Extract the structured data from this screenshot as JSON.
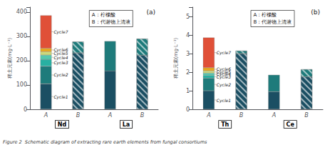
{
  "chart_data": [
    {
      "type": "bar",
      "stacked": true,
      "grid": false,
      "title": "(a)",
      "ylabel": "稀土元素(mg·L⁻¹)",
      "ylim": [
        0,
        420
      ],
      "yticks": [
        0,
        100,
        200,
        300,
        400
      ],
      "categories": [
        "A",
        "B",
        "A",
        "B"
      ],
      "groups": [
        "Nd",
        "La"
      ],
      "annotations": [
        "A：柠檬酸",
        "B：代谢物上清液"
      ],
      "series": [
        {
          "name": "Cycle1",
          "color": "#1b4f63",
          "values": [
            105,
            232,
            158,
            222
          ]
        },
        {
          "name": "Cycle2",
          "color": "#1e7b7b",
          "values": [
            72,
            46,
            122,
            68
          ]
        },
        {
          "name": "Cycle3",
          "color": "#28b0a2",
          "values": [
            28,
            null,
            null,
            null
          ]
        },
        {
          "name": "Cycle4",
          "color": "#55c8ae",
          "values": [
            18,
            null,
            null,
            null
          ]
        },
        {
          "name": "Cycle5",
          "color": "#ccd87a",
          "values": [
            14,
            null,
            null,
            null
          ]
        },
        {
          "name": "Cycle6",
          "color": "#e8a820",
          "values": [
            14,
            null,
            null,
            null
          ]
        },
        {
          "name": "Cycle7",
          "color": "#e05038",
          "values": [
            135,
            null,
            null,
            null
          ]
        }
      ]
    },
    {
      "type": "bar",
      "stacked": true,
      "grid": false,
      "title": "(b)",
      "ylabel": "稀土元素(mg·L⁻¹)",
      "ylim": [
        0,
        5.5
      ],
      "yticks": [
        0,
        1,
        2,
        3,
        4,
        5
      ],
      "categories": [
        "A",
        "B",
        "A",
        "B"
      ],
      "groups": [
        "Th",
        "Ce"
      ],
      "annotations": [
        "A：柠檬酸",
        "B：代谢物上清液"
      ],
      "series": [
        {
          "name": "Cycle1",
          "color": "#1b4f63",
          "values": [
            1.0,
            3.0,
            0.95,
            1.75
          ]
        },
        {
          "name": "Cycle2",
          "color": "#1e7b7b",
          "values": [
            0.68,
            0.15,
            0.9,
            0.4
          ]
        },
        {
          "name": "Cycle3",
          "color": "#28b0a2",
          "values": [
            0.15,
            null,
            null,
            null
          ]
        },
        {
          "name": "Cycle4",
          "color": "#55c8ae",
          "values": [
            0.12,
            null,
            null,
            null
          ]
        },
        {
          "name": "Cycle5",
          "color": "#ccd87a",
          "values": [
            0.12,
            null,
            null,
            null
          ]
        },
        {
          "name": "Cycle6",
          "color": "#e8a820",
          "values": [
            0.17,
            null,
            null,
            null
          ]
        },
        {
          "name": "Cycle7",
          "color": "#e05038",
          "values": [
            1.62,
            null,
            null,
            null
          ]
        }
      ]
    }
  ],
  "caption": "Figure 2  Schematic diagram of extracting rare earth elements from fungal consortiums"
}
